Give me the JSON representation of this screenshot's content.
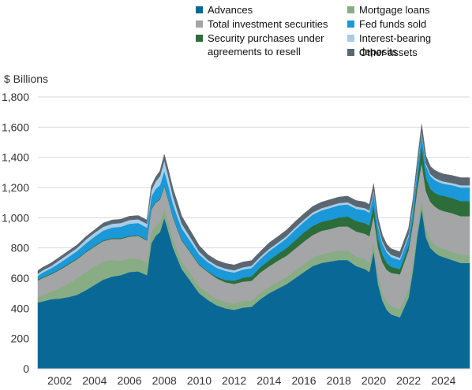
{
  "chart_data": {
    "type": "area",
    "stacked": true,
    "ylabel": "$ Billions",
    "ylim": [
      0,
      1800
    ],
    "yticks": [
      0,
      200,
      400,
      600,
      800,
      1000,
      1200,
      1400,
      1600,
      1800
    ],
    "ytick_labels": [
      "0",
      "200",
      "400",
      "600",
      "800",
      "1,000",
      "1,200",
      "1,400",
      "1,600",
      "1,800"
    ],
    "xlim": [
      2000.75,
      2025.5
    ],
    "xticks": [
      2002,
      2004,
      2006,
      2008,
      2010,
      2012,
      2014,
      2016,
      2018,
      2020,
      2022,
      2024
    ],
    "xtick_labels": [
      "2002",
      "2004",
      "2006",
      "2008",
      "2010",
      "2012",
      "2014",
      "2016",
      "2018",
      "2020",
      "2022",
      "2024"
    ],
    "grid": "horizontal",
    "legend_position": "top",
    "x": [
      2000.75,
      2001.0,
      2001.5,
      2002.0,
      2002.5,
      2003.0,
      2003.5,
      2004.0,
      2004.5,
      2005.0,
      2005.5,
      2006.0,
      2006.5,
      2007.0,
      2007.25,
      2007.5,
      2007.75,
      2008.0,
      2008.25,
      2008.5,
      2008.75,
      2009.0,
      2009.5,
      2010.0,
      2010.5,
      2011.0,
      2011.5,
      2012.0,
      2012.5,
      2013.0,
      2013.5,
      2014.0,
      2014.5,
      2015.0,
      2015.5,
      2016.0,
      2016.5,
      2017.0,
      2017.5,
      2018.0,
      2018.5,
      2019.0,
      2019.5,
      2019.75,
      2020.0,
      2020.25,
      2020.5,
      2020.75,
      2021.0,
      2021.5,
      2022.0,
      2022.25,
      2022.5,
      2022.75,
      2023.0,
      2023.25,
      2023.5,
      2023.75,
      2024.0,
      2024.5,
      2025.0,
      2025.5
    ],
    "series": [
      {
        "name": "Advances",
        "color": "#0a6897",
        "values": [
          440,
          445,
          460,
          465,
          475,
          490,
          520,
          555,
          590,
          610,
          620,
          640,
          645,
          620,
          830,
          880,
          905,
          1000,
          900,
          800,
          730,
          660,
          580,
          500,
          455,
          420,
          400,
          390,
          405,
          410,
          460,
          500,
          530,
          560,
          600,
          640,
          680,
          700,
          710,
          720,
          720,
          680,
          660,
          640,
          780,
          560,
          450,
          390,
          360,
          340,
          470,
          650,
          880,
          1060,
          870,
          800,
          770,
          750,
          740,
          720,
          700,
          700
        ]
      },
      {
        "name": "Mortgage loans",
        "color": "#88ad85",
        "values": [
          35,
          40,
          50,
          70,
          90,
          110,
          120,
          125,
          120,
          110,
          95,
          90,
          85,
          80,
          75,
          70,
          65,
          60,
          58,
          55,
          52,
          50,
          48,
          46,
          45,
          44,
          43,
          42,
          42,
          42,
          42,
          43,
          45,
          48,
          50,
          52,
          55,
          58,
          60,
          62,
          63,
          64,
          64,
          63,
          60,
          58,
          55,
          55,
          55,
          55,
          55,
          55,
          55,
          55,
          55,
          55,
          55,
          55,
          55,
          55,
          55,
          55
        ]
      },
      {
        "name": "Total investment securities",
        "color": "#a3a5a7",
        "values": [
          110,
          115,
          115,
          120,
          125,
          125,
          130,
          130,
          135,
          140,
          145,
          145,
          150,
          150,
          150,
          150,
          150,
          150,
          150,
          145,
          140,
          140,
          140,
          140,
          140,
          135,
          130,
          130,
          130,
          130,
          135,
          135,
          140,
          140,
          145,
          150,
          150,
          155,
          155,
          160,
          160,
          165,
          170,
          175,
          175,
          185,
          200,
          210,
          220,
          230,
          260,
          260,
          260,
          250,
          250,
          250,
          250,
          250,
          250,
          255,
          255,
          255
        ]
      },
      {
        "name": "Security purchases under agreements to resell",
        "color": "#2d6d3a",
        "values": [
          5,
          5,
          5,
          5,
          5,
          5,
          5,
          5,
          5,
          5,
          5,
          5,
          5,
          5,
          5,
          5,
          5,
          5,
          5,
          5,
          5,
          5,
          5,
          5,
          5,
          10,
          15,
          20,
          25,
          30,
          35,
          40,
          45,
          50,
          55,
          60,
          60,
          60,
          60,
          60,
          65,
          70,
          70,
          70,
          70,
          60,
          50,
          45,
          40,
          35,
          30,
          40,
          60,
          120,
          90,
          85,
          90,
          95,
          100,
          100,
          100,
          100
        ]
      },
      {
        "name": "Fed funds sold",
        "color": "#1b98d7",
        "values": [
          25,
          30,
          35,
          40,
          45,
          50,
          55,
          60,
          65,
          70,
          75,
          80,
          80,
          80,
          80,
          85,
          90,
          95,
          90,
          85,
          80,
          75,
          70,
          65,
          60,
          60,
          60,
          55,
          55,
          55,
          55,
          60,
          60,
          65,
          70,
          70,
          75,
          75,
          80,
          80,
          80,
          80,
          85,
          85,
          85,
          80,
          75,
          70,
          65,
          60,
          60,
          65,
          70,
          75,
          80,
          85,
          85,
          85,
          80,
          85,
          90,
          90
        ]
      },
      {
        "name": "Interest-bearing deposits",
        "color": "#a8cde8",
        "values": [
          15,
          15,
          15,
          20,
          20,
          20,
          25,
          25,
          25,
          25,
          25,
          25,
          25,
          25,
          40,
          50,
          60,
          70,
          60,
          50,
          40,
          30,
          25,
          20,
          15,
          15,
          15,
          15,
          15,
          15,
          15,
          15,
          15,
          15,
          15,
          15,
          15,
          15,
          15,
          15,
          15,
          15,
          15,
          15,
          15,
          15,
          15,
          15,
          15,
          15,
          15,
          15,
          15,
          15,
          15,
          15,
          15,
          15,
          15,
          15,
          15,
          15
        ]
      },
      {
        "name": "Other assets",
        "color": "#5b6770",
        "values": [
          20,
          20,
          20,
          20,
          20,
          20,
          20,
          20,
          25,
          25,
          25,
          25,
          25,
          25,
          30,
          30,
          35,
          40,
          45,
          50,
          55,
          50,
          45,
          40,
          35,
          35,
          35,
          35,
          35,
          35,
          35,
          40,
          40,
          40,
          40,
          40,
          40,
          40,
          40,
          40,
          40,
          40,
          40,
          40,
          40,
          40,
          40,
          40,
          40,
          40,
          40,
          40,
          40,
          45,
          50,
          50,
          50,
          50,
          50,
          50,
          50,
          50
        ]
      }
    ],
    "legend_columns": [
      [
        0,
        2,
        3
      ],
      [
        1,
        4,
        5,
        6
      ]
    ],
    "legend_labels": [
      "Advances",
      "Mortgage loans",
      "Total investment securities",
      "Security purchases under\nagreements to resell",
      "Fed funds sold",
      "Interest-bearing deposits",
      "Other assets"
    ]
  }
}
